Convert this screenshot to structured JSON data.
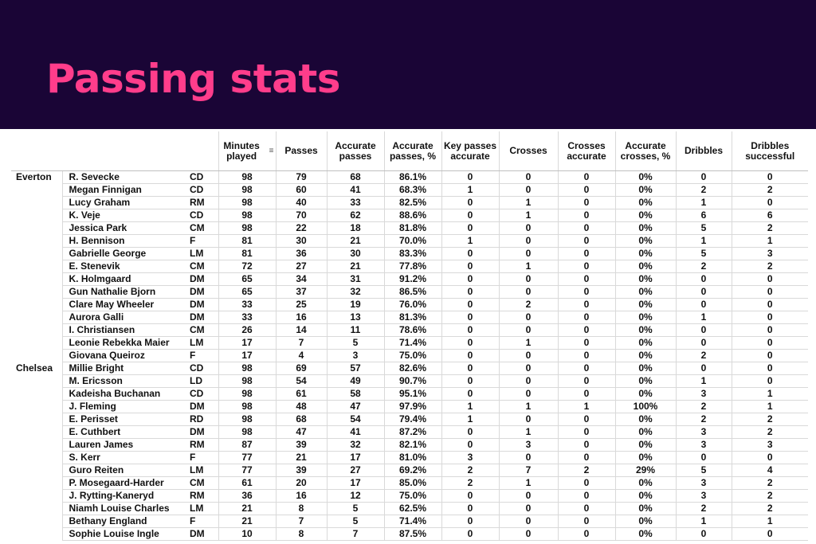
{
  "title": "Passing stats",
  "headers": [
    "Minutes played",
    "Passes",
    "Accurate passes",
    "Accurate passes, %",
    "Key passes accurate",
    "Crosses",
    "Crosses accurate",
    "Accurate crosses, %",
    "Dribbles",
    "Dribbles successful"
  ],
  "sort_icon": "sort-descending-icon",
  "rows": [
    {
      "team": "Everton",
      "player": "R. Sevecke",
      "pos": "CD",
      "stats": [
        "98",
        "79",
        "68",
        "86.1%",
        "0",
        "0",
        "0",
        "0%",
        "0",
        "0"
      ]
    },
    {
      "team": "",
      "player": "Megan Finnigan",
      "pos": "CD",
      "stats": [
        "98",
        "60",
        "41",
        "68.3%",
        "1",
        "0",
        "0",
        "0%",
        "2",
        "2"
      ]
    },
    {
      "team": "",
      "player": "Lucy Graham",
      "pos": "RM",
      "stats": [
        "98",
        "40",
        "33",
        "82.5%",
        "0",
        "1",
        "0",
        "0%",
        "1",
        "0"
      ]
    },
    {
      "team": "",
      "player": "K. Veje",
      "pos": "CD",
      "stats": [
        "98",
        "70",
        "62",
        "88.6%",
        "0",
        "1",
        "0",
        "0%",
        "6",
        "6"
      ]
    },
    {
      "team": "",
      "player": "Jessica Park",
      "pos": "CM",
      "stats": [
        "98",
        "22",
        "18",
        "81.8%",
        "0",
        "0",
        "0",
        "0%",
        "5",
        "2"
      ]
    },
    {
      "team": "",
      "player": "H. Bennison",
      "pos": "F",
      "stats": [
        "81",
        "30",
        "21",
        "70.0%",
        "1",
        "0",
        "0",
        "0%",
        "1",
        "1"
      ]
    },
    {
      "team": "",
      "player": "Gabrielle George",
      "pos": "LM",
      "stats": [
        "81",
        "36",
        "30",
        "83.3%",
        "0",
        "0",
        "0",
        "0%",
        "5",
        "3"
      ]
    },
    {
      "team": "",
      "player": "E. Stenevik",
      "pos": "CM",
      "stats": [
        "72",
        "27",
        "21",
        "77.8%",
        "0",
        "1",
        "0",
        "0%",
        "2",
        "2"
      ]
    },
    {
      "team": "",
      "player": "K. Holmgaard",
      "pos": "DM",
      "stats": [
        "65",
        "34",
        "31",
        "91.2%",
        "0",
        "0",
        "0",
        "0%",
        "0",
        "0"
      ]
    },
    {
      "team": "",
      "player": "Gun Nathalie Bjorn",
      "pos": "DM",
      "stats": [
        "65",
        "37",
        "32",
        "86.5%",
        "0",
        "0",
        "0",
        "0%",
        "0",
        "0"
      ]
    },
    {
      "team": "",
      "player": "Clare May Wheeler",
      "pos": "DM",
      "stats": [
        "33",
        "25",
        "19",
        "76.0%",
        "0",
        "2",
        "0",
        "0%",
        "0",
        "0"
      ]
    },
    {
      "team": "",
      "player": "Aurora Galli",
      "pos": "DM",
      "stats": [
        "33",
        "16",
        "13",
        "81.3%",
        "0",
        "0",
        "0",
        "0%",
        "1",
        "0"
      ]
    },
    {
      "team": "",
      "player": "I. Christiansen",
      "pos": "CM",
      "stats": [
        "26",
        "14",
        "11",
        "78.6%",
        "0",
        "0",
        "0",
        "0%",
        "0",
        "0"
      ]
    },
    {
      "team": "",
      "player": "Leonie Rebekka Maier",
      "pos": "LM",
      "stats": [
        "17",
        "7",
        "5",
        "71.4%",
        "0",
        "1",
        "0",
        "0%",
        "0",
        "0"
      ]
    },
    {
      "team": "",
      "player": "Giovana Queiroz",
      "pos": "F",
      "stats": [
        "17",
        "4",
        "3",
        "75.0%",
        "0",
        "0",
        "0",
        "0%",
        "2",
        "0"
      ]
    },
    {
      "team": "Chelsea",
      "player": "Millie Bright",
      "pos": "CD",
      "stats": [
        "98",
        "69",
        "57",
        "82.6%",
        "0",
        "0",
        "0",
        "0%",
        "0",
        "0"
      ]
    },
    {
      "team": "",
      "player": "M. Ericsson",
      "pos": "LD",
      "stats": [
        "98",
        "54",
        "49",
        "90.7%",
        "0",
        "0",
        "0",
        "0%",
        "1",
        "0"
      ]
    },
    {
      "team": "",
      "player": "Kadeisha Buchanan",
      "pos": "CD",
      "stats": [
        "98",
        "61",
        "58",
        "95.1%",
        "0",
        "0",
        "0",
        "0%",
        "3",
        "1"
      ]
    },
    {
      "team": "",
      "player": "J. Fleming",
      "pos": "DM",
      "stats": [
        "98",
        "48",
        "47",
        "97.9%",
        "1",
        "1",
        "1",
        "100%",
        "2",
        "1"
      ]
    },
    {
      "team": "",
      "player": "E. Perisset",
      "pos": "RD",
      "stats": [
        "98",
        "68",
        "54",
        "79.4%",
        "1",
        "0",
        "0",
        "0%",
        "2",
        "2"
      ]
    },
    {
      "team": "",
      "player": "E. Cuthbert",
      "pos": "DM",
      "stats": [
        "98",
        "47",
        "41",
        "87.2%",
        "0",
        "1",
        "0",
        "0%",
        "3",
        "2"
      ]
    },
    {
      "team": "",
      "player": "Lauren James",
      "pos": "RM",
      "stats": [
        "87",
        "39",
        "32",
        "82.1%",
        "0",
        "3",
        "0",
        "0%",
        "3",
        "3"
      ]
    },
    {
      "team": "",
      "player": "S. Kerr",
      "pos": "F",
      "stats": [
        "77",
        "21",
        "17",
        "81.0%",
        "3",
        "0",
        "0",
        "0%",
        "0",
        "0"
      ]
    },
    {
      "team": "",
      "player": "Guro Reiten",
      "pos": "LM",
      "stats": [
        "77",
        "39",
        "27",
        "69.2%",
        "2",
        "7",
        "2",
        "29%",
        "5",
        "4"
      ]
    },
    {
      "team": "",
      "player": "P. Mosegaard-Harder",
      "pos": "CM",
      "stats": [
        "61",
        "20",
        "17",
        "85.0%",
        "2",
        "1",
        "0",
        "0%",
        "3",
        "2"
      ]
    },
    {
      "team": "",
      "player": "J. Rytting-Kaneryd",
      "pos": "RM",
      "stats": [
        "36",
        "16",
        "12",
        "75.0%",
        "0",
        "0",
        "0",
        "0%",
        "3",
        "2"
      ]
    },
    {
      "team": "",
      "player": "Niamh Louise Charles",
      "pos": "LM",
      "stats": [
        "21",
        "8",
        "5",
        "62.5%",
        "0",
        "0",
        "0",
        "0%",
        "2",
        "2"
      ]
    },
    {
      "team": "",
      "player": "Bethany England",
      "pos": "F",
      "stats": [
        "21",
        "7",
        "5",
        "71.4%",
        "0",
        "0",
        "0",
        "0%",
        "1",
        "1"
      ]
    },
    {
      "team": "",
      "player": "Sophie Louise Ingle",
      "pos": "DM",
      "stats": [
        "10",
        "8",
        "7",
        "87.5%",
        "0",
        "0",
        "0",
        "0%",
        "0",
        "0"
      ]
    }
  ]
}
